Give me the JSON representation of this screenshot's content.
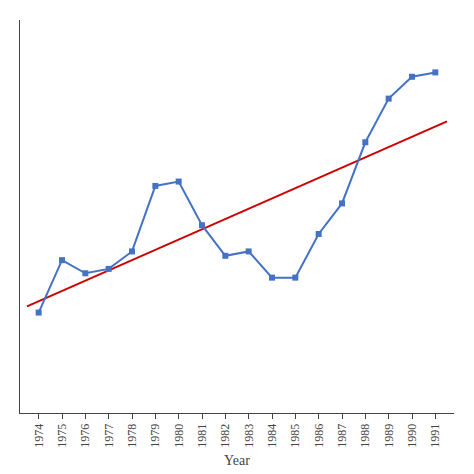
{
  "chart_data": {
    "type": "line",
    "xlabel": "Year",
    "xlim": [
      1973.2,
      1991.8
    ],
    "xticks": [
      1974,
      1975,
      1976,
      1977,
      1978,
      1979,
      1980,
      1981,
      1982,
      1983,
      1984,
      1985,
      1986,
      1987,
      1988,
      1989,
      1990,
      1991
    ],
    "ylim": [
      -5,
      85
    ],
    "grid": false,
    "tick_labels": "x",
    "series": [
      {
        "type": "line",
        "color": "#CC0000",
        "line_style": "solid",
        "x": [
          1973.5,
          1991.5
        ],
        "values": [
          19.4254,
          61.7969
        ]
      },
      {
        "type": "line",
        "color": "#4472C4",
        "line_style": "solid",
        "marker": "square",
        "x": [
          1974,
          1975,
          1976,
          1977,
          1978,
          1979,
          1980,
          1981,
          1982,
          1983,
          1984,
          1985,
          1986,
          1987,
          1988,
          1989,
          1990,
          1991
        ],
        "values": [
          18,
          30,
          27,
          28,
          32,
          47,
          48,
          38,
          31,
          32,
          26,
          26,
          36,
          43,
          57,
          67,
          72,
          73
        ]
      }
    ]
  }
}
